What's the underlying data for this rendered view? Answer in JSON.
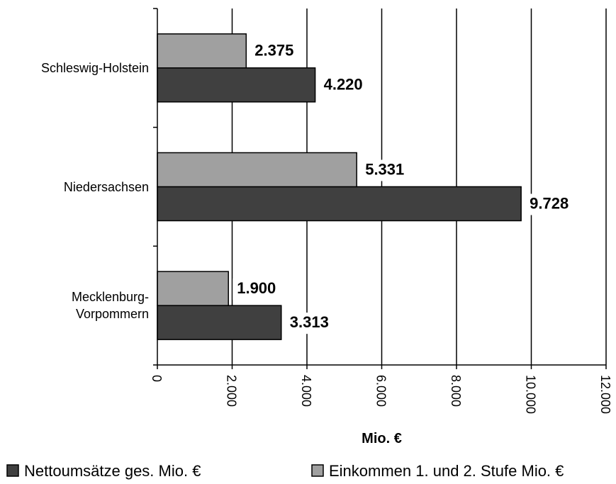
{
  "chart_data": {
    "type": "bar",
    "orientation": "horizontal",
    "categories": [
      "Schleswig-Holstein",
      "Niedersachsen",
      "Mecklenburg-\nVorpommern"
    ],
    "series": [
      {
        "name": "Nettoumsätze ges. Mio. €",
        "color": "#404040",
        "values": [
          4220,
          9728,
          3313
        ],
        "value_labels": [
          "4.220",
          "9.728",
          "3.313"
        ]
      },
      {
        "name": "Einkommen 1. und 2. Stufe Mio. €",
        "color": "#a0a0a0",
        "values": [
          2375,
          5331,
          1900
        ],
        "value_labels": [
          "2.375",
          "5.331",
          "1.900"
        ]
      }
    ],
    "xlabel": "Mio. €",
    "xlim": [
      0,
      12000
    ],
    "xticks": [
      0,
      {
        "value": 2000,
        "label": "2.000"
      },
      {
        "value": 4000,
        "label": "4.000"
      },
      {
        "value": 6000,
        "label": "6.000"
      },
      {
        "value": 8000,
        "label": "8.000"
      },
      {
        "value": 10000,
        "label": "10.000"
      },
      {
        "value": 12000,
        "label": "12.000"
      }
    ],
    "grid": true,
    "legend": "bottom"
  }
}
